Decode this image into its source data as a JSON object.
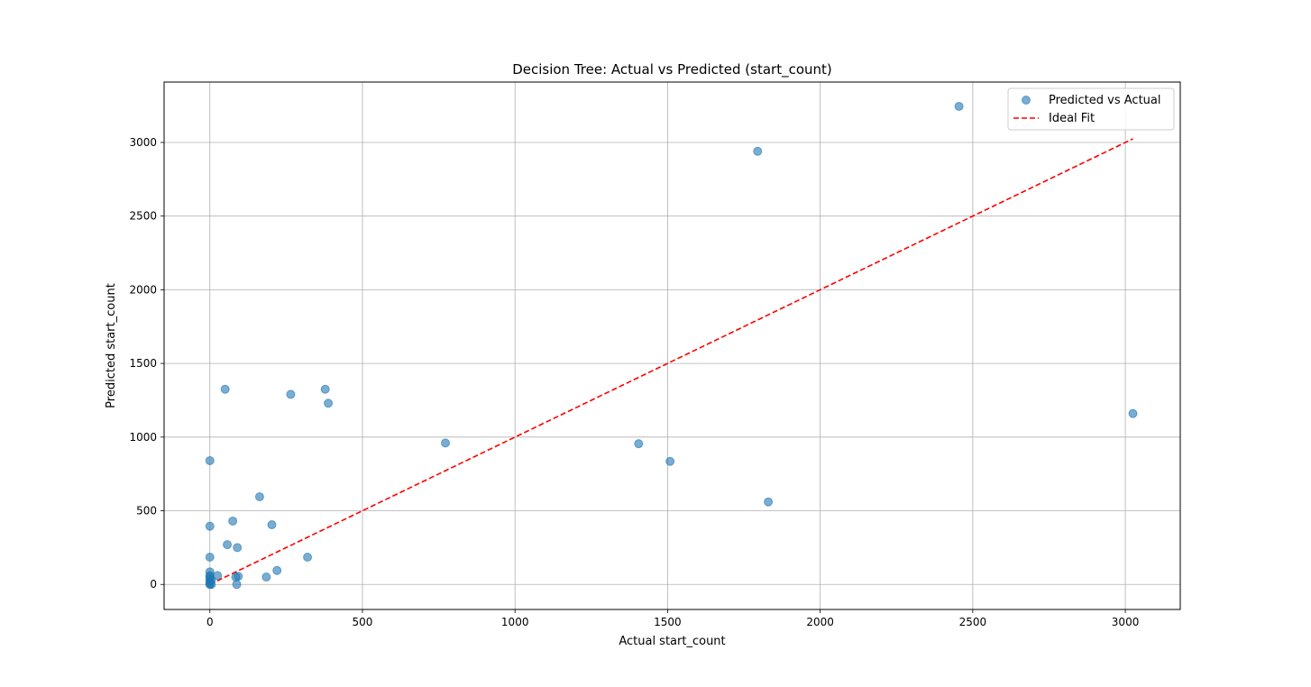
{
  "chart_data": {
    "type": "scatter",
    "title": "Decision Tree: Actual vs Predicted (start_count)",
    "xlabel": "Actual start_count",
    "ylabel": "Predicted start_count",
    "xlim": [
      -150,
      3180
    ],
    "ylim": [
      -170,
      3410
    ],
    "grid": true,
    "legend_position": "top-right",
    "x_ticks": [
      0,
      500,
      1000,
      1500,
      2000,
      2500,
      3000
    ],
    "y_ticks": [
      0,
      500,
      1000,
      1500,
      2000,
      2500,
      3000
    ],
    "x_tick_labels": [
      "0",
      "500",
      "1000",
      "1500",
      "2000",
      "2500",
      "3000"
    ],
    "y_tick_labels": [
      "0",
      "500",
      "1000",
      "1500",
      "2000",
      "2500",
      "3000"
    ],
    "series": [
      {
        "name": "Predicted vs Actual",
        "kind": "scatter",
        "color": "#1f77b4",
        "points": [
          {
            "x": 0,
            "y": 0
          },
          {
            "x": 0,
            "y": 5
          },
          {
            "x": 0,
            "y": 20
          },
          {
            "x": 0,
            "y": 35
          },
          {
            "x": 0,
            "y": 50
          },
          {
            "x": 0,
            "y": 60
          },
          {
            "x": 0,
            "y": 85
          },
          {
            "x": 0,
            "y": 185
          },
          {
            "x": 0,
            "y": 395
          },
          {
            "x": 0,
            "y": 840
          },
          {
            "x": 5,
            "y": 0
          },
          {
            "x": 5,
            "y": 30
          },
          {
            "x": 25,
            "y": 60
          },
          {
            "x": 50,
            "y": 1325
          },
          {
            "x": 57,
            "y": 270
          },
          {
            "x": 75,
            "y": 430
          },
          {
            "x": 85,
            "y": 50
          },
          {
            "x": 88,
            "y": 0
          },
          {
            "x": 90,
            "y": 250
          },
          {
            "x": 93,
            "y": 55
          },
          {
            "x": 163,
            "y": 595
          },
          {
            "x": 185,
            "y": 50
          },
          {
            "x": 203,
            "y": 405
          },
          {
            "x": 220,
            "y": 95
          },
          {
            "x": 265,
            "y": 1290
          },
          {
            "x": 320,
            "y": 185
          },
          {
            "x": 378,
            "y": 1325
          },
          {
            "x": 388,
            "y": 1230
          },
          {
            "x": 772,
            "y": 960
          },
          {
            "x": 1405,
            "y": 955
          },
          {
            "x": 1508,
            "y": 835
          },
          {
            "x": 1795,
            "y": 2940
          },
          {
            "x": 1830,
            "y": 560
          },
          {
            "x": 2455,
            "y": 3245
          },
          {
            "x": 3025,
            "y": 1160
          }
        ]
      },
      {
        "name": "Ideal Fit",
        "kind": "line",
        "color": "#ff0000",
        "dash": "dashed",
        "x": [
          0,
          3025
        ],
        "y": [
          0,
          3025
        ]
      }
    ]
  }
}
